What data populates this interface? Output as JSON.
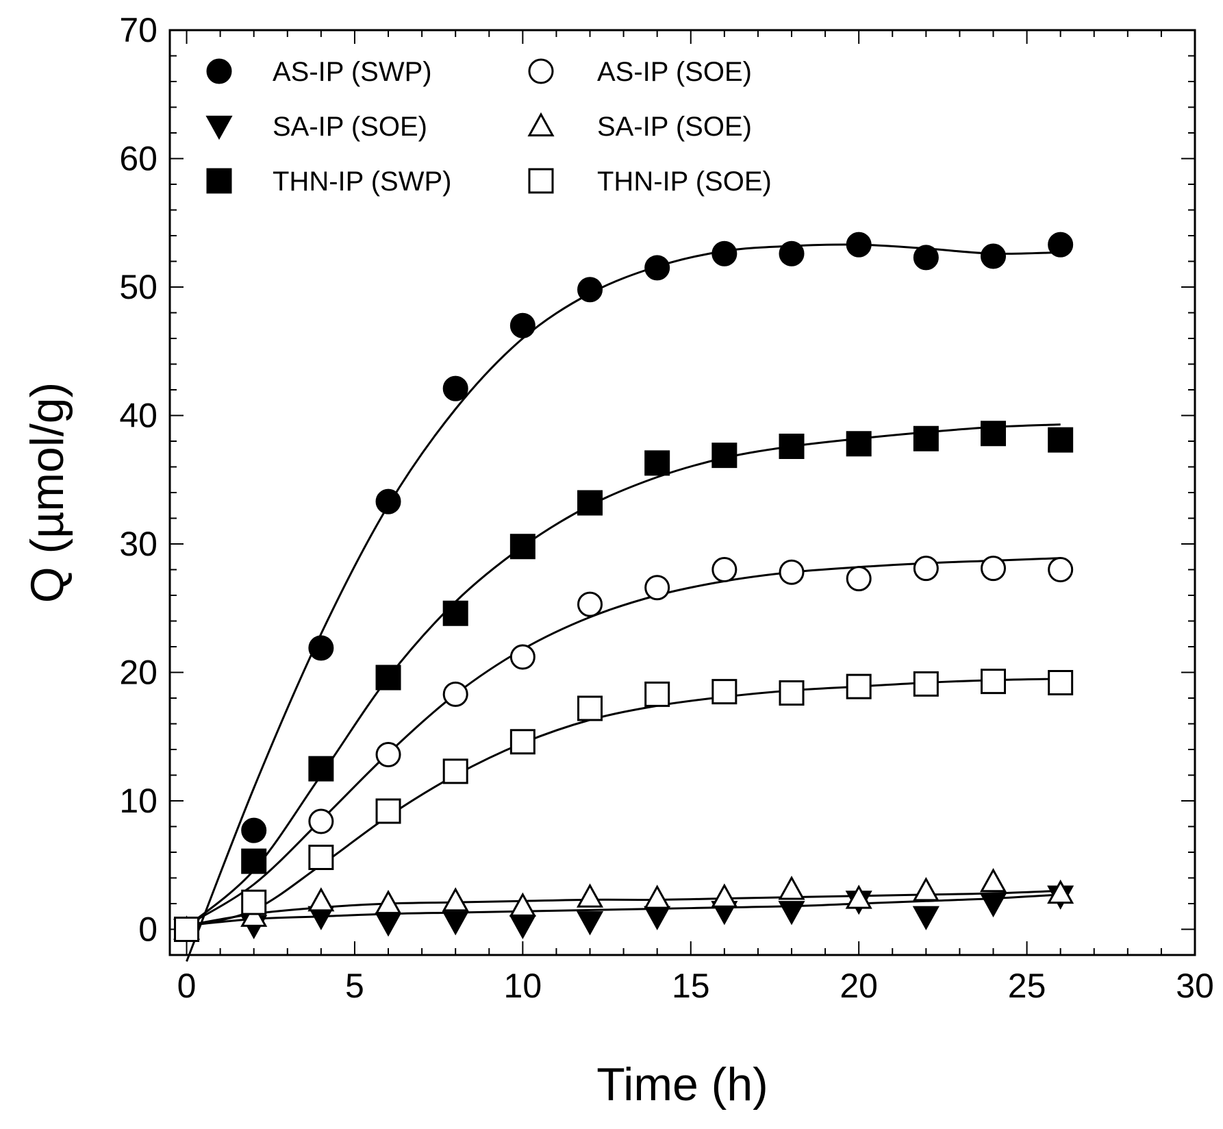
{
  "chart_data": {
    "type": "scatter",
    "title": "",
    "xlabel": "Time (h)",
    "ylabel": "Q (µmol/g)",
    "xlim": [
      -0.5,
      30
    ],
    "ylim": [
      -2,
      70
    ],
    "xticks": [
      0,
      5,
      10,
      15,
      20,
      25,
      30
    ],
    "yticks": [
      0,
      10,
      20,
      30,
      40,
      50,
      60,
      70
    ],
    "x_minor_step": 1,
    "y_minor_step": 2,
    "legend_position": "top-left",
    "series": [
      {
        "name": "AS-IP (SWP)",
        "marker": "circle",
        "filled": true,
        "x": [
          0,
          2,
          4,
          6,
          8,
          10,
          12,
          14,
          16,
          18,
          20,
          22,
          24,
          26
        ],
        "y": [
          0,
          7.7,
          21.9,
          33.3,
          42.1,
          47.0,
          49.8,
          51.5,
          52.6,
          52.6,
          53.3,
          52.3,
          52.4,
          53.3
        ],
        "fit_x": [
          0,
          2,
          4,
          6,
          8,
          10,
          12,
          14,
          16,
          18,
          20,
          22,
          24,
          26
        ],
        "fit_y": [
          -2.5,
          11.0,
          23.0,
          33.0,
          40.5,
          46.0,
          49.5,
          51.6,
          52.8,
          53.2,
          53.3,
          53.0,
          52.6,
          52.7
        ]
      },
      {
        "name": "SA-IP (SOE)",
        "marker": "triangle-down",
        "filled": true,
        "x": [
          0,
          2,
          4,
          6,
          8,
          10,
          12,
          14,
          16,
          18,
          20,
          22,
          24,
          26
        ],
        "y": [
          0,
          0.3,
          1.0,
          0.5,
          0.6,
          0.3,
          0.6,
          1.0,
          1.4,
          1.4,
          2.2,
          1.0,
          2.0,
          2.6
        ],
        "fit_x": [
          0,
          2,
          4,
          6,
          8,
          10,
          12,
          14,
          16,
          18,
          20,
          22,
          24,
          26
        ],
        "fit_y": [
          0.3,
          0.8,
          1.0,
          1.2,
          1.3,
          1.4,
          1.5,
          1.6,
          1.7,
          1.8,
          2.0,
          2.2,
          2.4,
          2.7
        ]
      },
      {
        "name": "THN-IP (SWP)",
        "marker": "square",
        "filled": true,
        "x": [
          0,
          2,
          4,
          6,
          8,
          10,
          12,
          14,
          16,
          18,
          20,
          22,
          24,
          26
        ],
        "y": [
          0,
          5.3,
          12.5,
          19.6,
          24.6,
          29.8,
          33.2,
          36.3,
          36.9,
          37.6,
          37.8,
          38.2,
          38.6,
          38.1
        ],
        "fit_x": [
          0,
          2,
          4,
          6,
          8,
          10,
          12,
          14,
          16,
          18,
          20,
          22,
          24,
          26
        ],
        "fit_y": [
          0.2,
          4.6,
          12.0,
          19.6,
          25.5,
          29.8,
          33.0,
          35.2,
          36.7,
          37.6,
          38.2,
          38.7,
          39.1,
          39.3
        ]
      },
      {
        "name": "AS-IP (SOE)",
        "marker": "circle",
        "filled": false,
        "x": [
          0,
          4,
          6,
          8,
          10,
          12,
          14,
          16,
          18,
          20,
          22,
          24,
          26
        ],
        "y": [
          0,
          8.4,
          13.6,
          18.3,
          21.2,
          25.3,
          26.6,
          28.0,
          27.8,
          27.3,
          28.1,
          28.1,
          28.0
        ],
        "fit_x": [
          0,
          2,
          4,
          6,
          8,
          10,
          12,
          14,
          16,
          18,
          20,
          22,
          24,
          26
        ],
        "fit_y": [
          0.3,
          3.5,
          8.5,
          13.7,
          18.3,
          21.8,
          24.3,
          26.0,
          27.1,
          27.8,
          28.2,
          28.5,
          28.7,
          28.9
        ]
      },
      {
        "name": "SA-IP (SOE)",
        "marker": "triangle-up",
        "filled": false,
        "x": [
          0,
          2,
          4,
          6,
          8,
          10,
          12,
          14,
          16,
          18,
          20,
          22,
          24,
          26
        ],
        "y": [
          0,
          1.0,
          2.2,
          2.0,
          2.2,
          1.8,
          2.5,
          2.4,
          2.5,
          3.1,
          2.4,
          3.0,
          3.7,
          2.8
        ],
        "fit_x": [
          0,
          2,
          4,
          6,
          8,
          10,
          12,
          14,
          16,
          18,
          20,
          22,
          24,
          26
        ],
        "fit_y": [
          0.3,
          1.2,
          1.7,
          2.0,
          2.1,
          2.2,
          2.3,
          2.3,
          2.4,
          2.5,
          2.6,
          2.7,
          2.8,
          3.0
        ]
      },
      {
        "name": "THN-IP (SOE)",
        "marker": "square",
        "filled": false,
        "x": [
          0,
          2,
          4,
          6,
          8,
          10,
          12,
          14,
          16,
          18,
          20,
          22,
          24,
          26
        ],
        "y": [
          0,
          2.1,
          5.6,
          9.2,
          12.3,
          14.6,
          17.2,
          18.3,
          18.5,
          18.4,
          18.9,
          19.1,
          19.3,
          19.2
        ],
        "fit_x": [
          0,
          2,
          4,
          6,
          8,
          10,
          12,
          14,
          16,
          18,
          20,
          22,
          24,
          26
        ],
        "fit_y": [
          0.2,
          1.5,
          5.0,
          8.8,
          12.0,
          14.5,
          16.3,
          17.4,
          18.1,
          18.6,
          18.9,
          19.2,
          19.4,
          19.5
        ]
      }
    ]
  }
}
